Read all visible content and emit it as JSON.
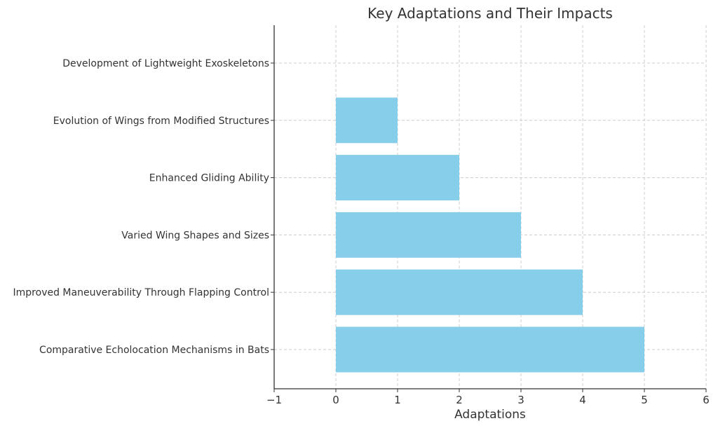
{
  "chart_data": {
    "type": "bar",
    "orientation": "horizontal",
    "title": "Key Adaptations and Their Impacts",
    "xlabel": "Adaptations",
    "ylabel": "",
    "categories": [
      "Comparative Echolocation Mechanisms in Bats",
      "Improved Maneuverability Through Flapping Control",
      "Varied Wing Shapes and Sizes",
      "Enhanced Gliding Ability",
      "Evolution of Wings from Modified Structures",
      "Development of Lightweight Exoskeletons"
    ],
    "values": [
      5,
      4,
      3,
      2,
      1,
      0
    ],
    "xlim": [
      -1,
      6
    ],
    "xticks": [
      -1,
      0,
      1,
      2,
      3,
      4,
      5,
      6
    ],
    "xtick_labels": [
      "−1",
      "0",
      "1",
      "2",
      "3",
      "4",
      "5",
      "6"
    ],
    "grid": true,
    "bar_color": "#87ceeb",
    "legend": "none"
  }
}
